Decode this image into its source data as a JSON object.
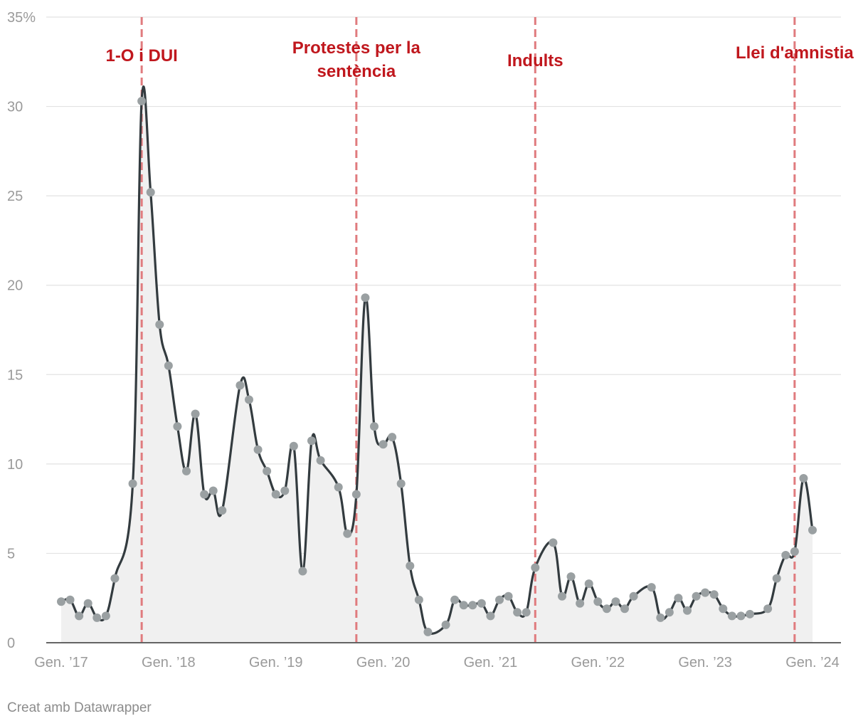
{
  "credit": "Creat amb Datawrapper",
  "chart_data": {
    "type": "line",
    "title": "",
    "xlabel": "",
    "ylabel": "",
    "y_unit_label": "35%",
    "ylim": [
      0,
      35
    ],
    "y_ticks": [
      0,
      5,
      10,
      15,
      20,
      25,
      30,
      35
    ],
    "grid": true,
    "area_fill": true,
    "x_ticks": [
      {
        "label": "Gen. ’17",
        "date": "2017-01"
      },
      {
        "label": "Gen. ’18",
        "date": "2018-01"
      },
      {
        "label": "Gen. ’19",
        "date": "2019-01"
      },
      {
        "label": "Gen. ’20",
        "date": "2020-01"
      },
      {
        "label": "Gen. ’21",
        "date": "2021-01"
      },
      {
        "label": "Gen. ’22",
        "date": "2022-01"
      },
      {
        "label": "Gen. ’23",
        "date": "2023-01"
      },
      {
        "label": "Gen. ’24",
        "date": "2024-01"
      }
    ],
    "events": [
      {
        "label_lines": [
          "1-O i DUI"
        ],
        "date": "2017-10"
      },
      {
        "label_lines": [
          "Protestes per la",
          "sentència"
        ],
        "date": "2019-10"
      },
      {
        "label_lines": [
          "Indults"
        ],
        "date": "2021-06"
      },
      {
        "label_lines": [
          "Llei d'amnistia"
        ],
        "date": "2023-11"
      }
    ],
    "colors": {
      "line": "#333b3f",
      "points": "#9aa0a2",
      "area": "#f0f0f0",
      "event": "#e07b7e",
      "event_text": "#c0171d",
      "grid": "#e2e2e2"
    },
    "series": [
      {
        "x": [
          "2017-01",
          "2017-02",
          "2017-03",
          "2017-04",
          "2017-05",
          "2017-06",
          "2017-07",
          "2017-09",
          "2017-10",
          "2017-11",
          "2017-12",
          "2018-01",
          "2018-02",
          "2018-03",
          "2018-04",
          "2018-05",
          "2018-06",
          "2018-07",
          "2018-09",
          "2018-10",
          "2018-11",
          "2018-12",
          "2019-01",
          "2019-02",
          "2019-03",
          "2019-04",
          "2019-05",
          "2019-06",
          "2019-08",
          "2019-09",
          "2019-10",
          "2019-11",
          "2019-12",
          "2020-01",
          "2020-02",
          "2020-03",
          "2020-04",
          "2020-05",
          "2020-06",
          "2020-08",
          "2020-09",
          "2020-10",
          "2020-11",
          "2020-12",
          "2021-01",
          "2021-02",
          "2021-03",
          "2021-04",
          "2021-05",
          "2021-06",
          "2021-08",
          "2021-09",
          "2021-10",
          "2021-11",
          "2021-12",
          "2022-01",
          "2022-02",
          "2022-03",
          "2022-04",
          "2022-05",
          "2022-07",
          "2022-08",
          "2022-09",
          "2022-10",
          "2022-11",
          "2022-12",
          "2023-01",
          "2023-02",
          "2023-03",
          "2023-04",
          "2023-05",
          "2023-06",
          "2023-08",
          "2023-09",
          "2023-10",
          "2023-11",
          "2023-12",
          "2024-01"
        ],
        "values": [
          2.3,
          2.4,
          1.5,
          2.2,
          1.4,
          1.5,
          3.6,
          8.9,
          30.3,
          25.2,
          17.8,
          15.5,
          12.1,
          9.6,
          12.8,
          8.3,
          8.5,
          7.4,
          14.4,
          13.6,
          10.8,
          9.6,
          8.3,
          8.5,
          11.0,
          4.0,
          11.3,
          10.2,
          8.7,
          6.1,
          8.3,
          19.3,
          12.1,
          11.1,
          11.5,
          8.9,
          4.3,
          2.4,
          0.6,
          1.0,
          2.4,
          2.1,
          2.1,
          2.2,
          1.5,
          2.4,
          2.6,
          1.7,
          1.7,
          4.2,
          5.6,
          2.6,
          3.7,
          2.2,
          3.3,
          2.3,
          1.9,
          2.3,
          1.9,
          2.6,
          3.1,
          1.4,
          1.7,
          2.5,
          1.8,
          2.6,
          2.8,
          2.7,
          1.9,
          1.5,
          1.5,
          1.6,
          1.9,
          3.6,
          4.9,
          5.1,
          9.2,
          6.3
        ]
      }
    ]
  }
}
